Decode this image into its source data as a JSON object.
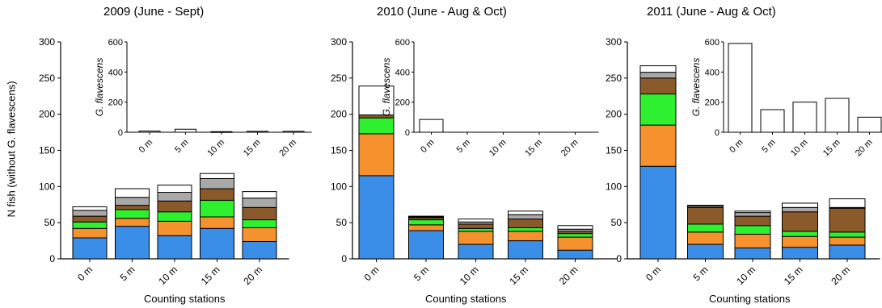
{
  "figure": {
    "ylabel": "N fish (without G. flavescens)",
    "xlabel": "Counting stations",
    "inset_ylabel": "G. flavescens"
  },
  "colors": {
    "segments": [
      "#3a8ee8",
      "#f5922e",
      "#2ef02e",
      "#8b5a2b",
      "#a9a9a9",
      "#ffffff"
    ],
    "stroke": "#000000"
  },
  "chart_data": [
    {
      "type": "bar",
      "stacked": true,
      "title": "2009 (June - Sept)",
      "categories": [
        "0 m",
        "5 m",
        "10 m",
        "15 m",
        "20 m"
      ],
      "ylim": [
        0,
        300
      ],
      "yticks": [
        0,
        50,
        100,
        150,
        200,
        250,
        300
      ],
      "segments": [
        [
          29,
          13,
          9,
          8,
          8,
          5
        ],
        [
          45,
          11,
          12,
          6,
          11,
          12
        ],
        [
          32,
          20,
          13,
          15,
          12,
          10
        ],
        [
          42,
          16,
          23,
          16,
          14,
          7
        ],
        [
          24,
          19,
          11,
          17,
          13,
          9
        ]
      ],
      "totals": [
        72,
        97,
        102,
        118,
        93
      ],
      "inset": {
        "type": "bar",
        "ylabel": "G. flavescens",
        "ylim": [
          0,
          600
        ],
        "yticks": [
          0,
          200,
          400,
          600
        ],
        "categories": [
          "0 m",
          "5 m",
          "10 m",
          "15 m",
          "20 m"
        ],
        "values": [
          8,
          20,
          4,
          6,
          6
        ]
      }
    },
    {
      "type": "bar",
      "stacked": true,
      "title": "2010 (June - Aug & Oct)",
      "categories": [
        "0 m",
        "5 m",
        "10 m",
        "15 m",
        "20 m"
      ],
      "ylim": [
        0,
        300
      ],
      "yticks": [
        0,
        50,
        100,
        150,
        200,
        250,
        300
      ],
      "segments": [
        [
          115,
          58,
          22,
          4,
          0,
          40
        ],
        [
          39,
          8,
          7,
          3,
          1,
          1
        ],
        [
          20,
          18,
          4,
          6,
          3,
          4
        ],
        [
          25,
          13,
          5,
          12,
          6,
          5
        ],
        [
          12,
          18,
          5,
          3,
          3,
          5
        ]
      ],
      "totals": [
        239,
        59,
        55,
        66,
        46
      ],
      "inset": {
        "type": "bar",
        "ylabel": "G. flavescens",
        "ylim": [
          0,
          600
        ],
        "yticks": [
          0,
          200,
          400,
          600
        ],
        "categories": [
          "0 m",
          "5 m",
          "10 m",
          "15 m",
          "20 m"
        ],
        "values": [
          85,
          0,
          0,
          0,
          0
        ]
      }
    },
    {
      "type": "bar",
      "stacked": true,
      "title": "2011 (June - Aug & Oct)",
      "categories": [
        "0 m",
        "5 m",
        "10 m",
        "15 m",
        "20 m"
      ],
      "ylim": [
        0,
        300
      ],
      "yticks": [
        0,
        50,
        100,
        150,
        200,
        250,
        300
      ],
      "segments": [
        [
          128,
          57,
          43,
          22,
          8,
          9
        ],
        [
          20,
          17,
          11,
          23,
          2,
          1
        ],
        [
          15,
          19,
          12,
          13,
          5,
          2
        ],
        [
          16,
          15,
          7,
          27,
          6,
          6
        ],
        [
          19,
          11,
          7,
          33,
          1,
          12
        ]
      ],
      "totals": [
        267,
        74,
        66,
        77,
        83
      ],
      "inset": {
        "type": "bar",
        "ylabel": "G. flavescens",
        "ylim": [
          0,
          600
        ],
        "yticks": [
          0,
          200,
          400,
          600
        ],
        "categories": [
          "0 m",
          "5 m",
          "10 m",
          "15 m",
          "20 m"
        ],
        "values": [
          590,
          150,
          200,
          225,
          100
        ]
      }
    }
  ]
}
